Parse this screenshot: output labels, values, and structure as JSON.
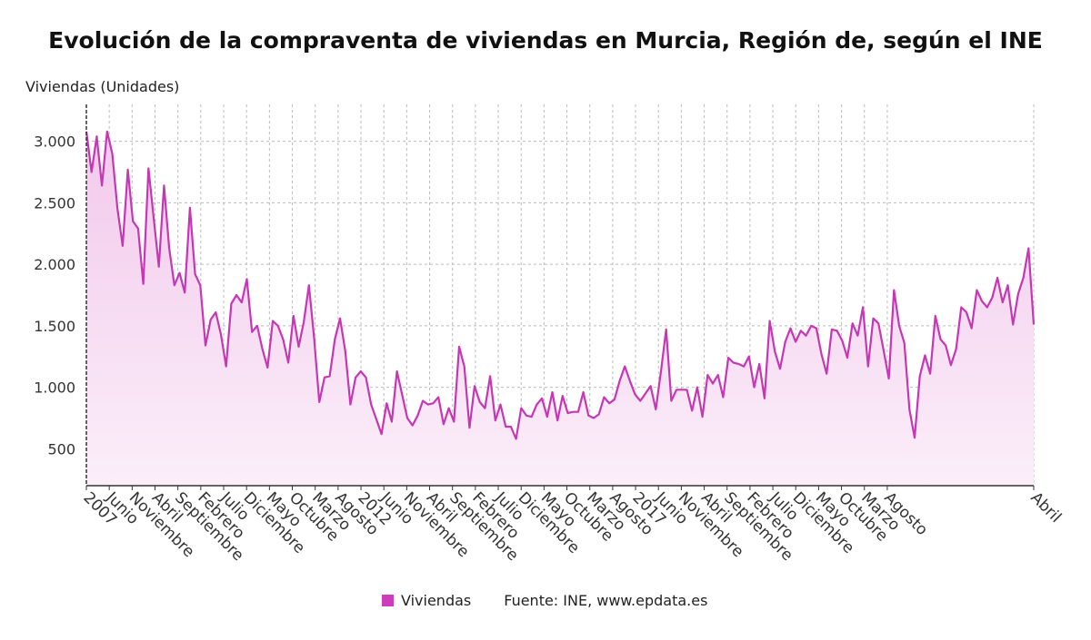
{
  "title": "Evolución de la compraventa de viviendas en Murcia, Región de, según el INE",
  "ylabel": "Viviendas (Unidades)",
  "legend": {
    "series_name": "Viviendas",
    "source": "Fuente: INE, www.epdata.es"
  },
  "colors": {
    "line": "#c736b4",
    "fill_top": "#f2c9ec",
    "fill_bottom": "#fbeef9",
    "grid": "#bbbbbb",
    "axis": "#333333",
    "legend_swatch": "#cc3cbb"
  },
  "chart_data": {
    "type": "area",
    "title": "Evolución de la compraventa de viviendas en Murcia, Región de, según el INE",
    "ylabel": "Viviendas (Unidades)",
    "xlabel": "",
    "x_start": "2007-01",
    "x_end": "2024-04",
    "ylim": [
      200,
      3300
    ],
    "yticks": [
      500,
      1000,
      1500,
      2000,
      2500,
      3000
    ],
    "ytick_labels": [
      "500",
      "1.000",
      "1.500",
      "2.000",
      "2.500",
      "3.000"
    ],
    "xtick_labels": [
      "2007",
      "Junio",
      "Noviembre",
      "Abril",
      "Septiembre",
      "Febrero",
      "Julio",
      "Diciembre",
      "Mayo",
      "Octubre",
      "Marzo",
      "Agosto",
      "2012",
      "Junio",
      "Noviembre",
      "Abril",
      "Septiembre",
      "Febrero",
      "Julio",
      "Diciembre",
      "Mayo",
      "Octubre",
      "Marzo",
      "Agosto",
      "2017",
      "Junio",
      "Noviembre",
      "Abril",
      "Septiembre",
      "Febrero",
      "Julio",
      "Diciembre",
      "Mayo",
      "Octubre",
      "Marzo",
      "Agosto",
      "Abril"
    ],
    "xtick_dates": [
      "2007-01",
      "2007-06",
      "2007-11",
      "2008-04",
      "2008-09",
      "2009-02",
      "2009-07",
      "2009-12",
      "2010-05",
      "2010-10",
      "2011-03",
      "2011-08",
      "2012-01",
      "2012-06",
      "2012-11",
      "2013-04",
      "2013-09",
      "2014-02",
      "2014-07",
      "2014-12",
      "2015-05",
      "2015-10",
      "2016-03",
      "2016-08",
      "2017-01",
      "2017-06",
      "2017-11",
      "2018-04",
      "2018-09",
      "2019-02",
      "2019-07",
      "2019-12",
      "2020-05",
      "2020-10",
      "2021-03",
      "2021-08",
      "2024-04"
    ],
    "grid": true,
    "legend_position": "bottom",
    "series": [
      {
        "name": "Viviendas",
        "values": [
          3080,
          2750,
          3040,
          2640,
          3080,
          2900,
          2450,
          2150,
          2770,
          2350,
          2290,
          1840,
          2780,
          2380,
          1980,
          2640,
          2130,
          1830,
          1930,
          1770,
          2460,
          1920,
          1830,
          1340,
          1550,
          1610,
          1430,
          1170,
          1680,
          1750,
          1690,
          1880,
          1450,
          1500,
          1310,
          1160,
          1540,
          1500,
          1390,
          1200,
          1580,
          1330,
          1530,
          1830,
          1400,
          880,
          1080,
          1090,
          1390,
          1560,
          1300,
          860,
          1080,
          1130,
          1080,
          860,
          740,
          620,
          870,
          720,
          1130,
          940,
          750,
          690,
          770,
          890,
          860,
          870,
          920,
          700,
          830,
          720,
          1330,
          1170,
          670,
          1010,
          880,
          830,
          1090,
          730,
          860,
          680,
          680,
          580,
          830,
          770,
          760,
          860,
          910,
          760,
          960,
          730,
          930,
          790,
          800,
          800,
          960,
          770,
          750,
          780,
          920,
          870,
          900,
          1050,
          1170,
          1050,
          940,
          890,
          950,
          1010,
          820,
          1130,
          1470,
          890,
          980,
          980,
          980,
          810,
          1000,
          760,
          1100,
          1030,
          1100,
          920,
          1240,
          1200,
          1190,
          1170,
          1250,
          1000,
          1190,
          910,
          1540,
          1290,
          1150,
          1370,
          1480,
          1370,
          1460,
          1420,
          1500,
          1480,
          1270,
          1110,
          1470,
          1460,
          1380,
          1240,
          1520,
          1420,
          1650,
          1170,
          1560,
          1520,
          1300,
          1070,
          1790,
          1500,
          1360,
          820,
          590,
          1090,
          1260,
          1110,
          1580,
          1390,
          1340,
          1180,
          1310,
          1650,
          1610,
          1480,
          1790,
          1700,
          1650,
          1730,
          1890,
          1690,
          1830,
          1510,
          1760,
          1890,
          2130,
          1510
        ]
      }
    ]
  }
}
